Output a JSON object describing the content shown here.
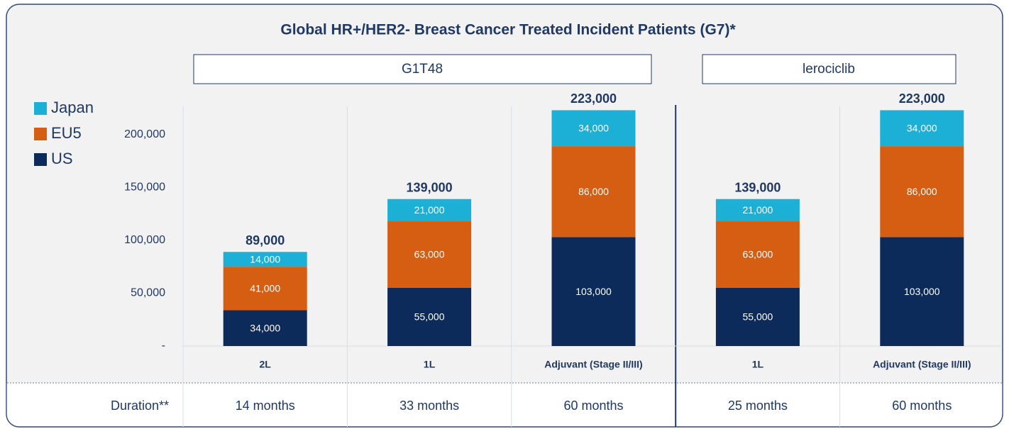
{
  "chart_data": {
    "type": "stacked_bar",
    "title": "Global HR+/HER2- Breast Cancer Treated Incident Patients (G7)*",
    "groups": [
      "G1T48",
      "lerociclib"
    ],
    "categories": [
      "2L",
      "1L",
      "Adjuvant (Stage II/III)",
      "1L",
      "Adjuvant (Stage II/III)"
    ],
    "series": [
      {
        "name": "US",
        "color": "#0c2a5a",
        "values": [
          34000,
          55000,
          103000,
          55000,
          103000
        ],
        "value_labels": [
          "34,000",
          "55,000",
          "103,000",
          "55,000",
          "103,000"
        ]
      },
      {
        "name": "EU5",
        "color": "#d55e12",
        "values": [
          41000,
          63000,
          86000,
          63000,
          86000
        ],
        "value_labels": [
          "41,000",
          "63,000",
          "86,000",
          "63,000",
          "86,000"
        ]
      },
      {
        "name": "Japan",
        "color": "#1cb0d6",
        "values": [
          14000,
          21000,
          34000,
          21000,
          34000
        ],
        "value_labels": [
          "14,000",
          "21,000",
          "34,000",
          "21,000",
          "34,000"
        ]
      }
    ],
    "totals": [
      89000,
      139000,
      223000,
      139000,
      223000
    ],
    "total_labels": [
      "89,000",
      "139,000",
      "223,000",
      "139,000",
      "223,000"
    ],
    "ylim": [
      0,
      230000
    ],
    "yticks": [
      {
        "value": 0,
        "label": "-"
      },
      {
        "value": 50000,
        "label": "50,000"
      },
      {
        "value": 100000,
        "label": "100,000"
      },
      {
        "value": 150000,
        "label": "150,000"
      },
      {
        "value": 200000,
        "label": "200,000"
      }
    ],
    "grid": false,
    "legend": "top-left",
    "duration_label": "Duration**",
    "durations": [
      "14 months",
      "33 months",
      "60 months",
      "25 months",
      "60 months"
    ]
  }
}
